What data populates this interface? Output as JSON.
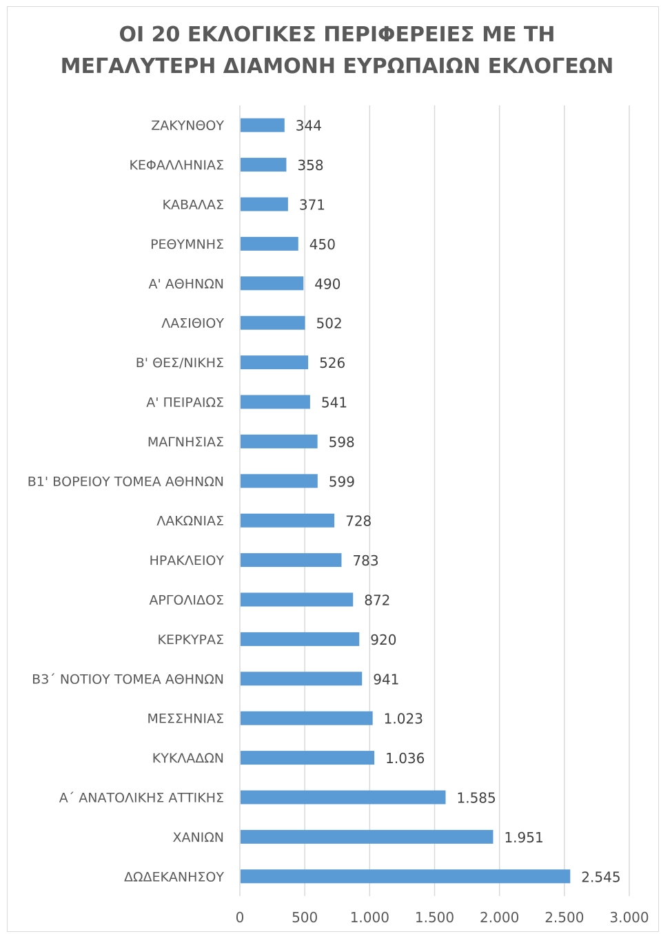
{
  "chart_data": {
    "type": "bar",
    "orientation": "horizontal",
    "title_lines": [
      "ΟΙ 20 ΕΚΛΟΓΙΚΕΣ ΠΕΡΙΦΕΡΕΙΕΣ ΜΕ ΤΗ",
      "ΜΕΓΑΛΥΤΕΡΗ ΔΙΑΜΟΝΗ ΕΥΡΩΠΑΙΩΝ ΕΚΛΟΓΕΩΝ"
    ],
    "categories": [
      "ΖΑΚΥΝΘΟΥ",
      "ΚΕΦΑΛΛΗΝΙΑΣ",
      "ΚΑΒΑΛΑΣ",
      "ΡΕΘΥΜΝΗΣ",
      "Α' ΑΘΗΝΩΝ",
      "ΛΑΣΙΘΙΟΥ",
      "Β' ΘΕΣ/ΝΙΚΗΣ",
      "Α' ΠΕΙΡΑΙΩΣ",
      "ΜΑΓΝΗΣΙΑΣ",
      "Β1' ΒΟΡΕΙΟΥ ΤΟΜΕΑ ΑΘΗΝΩΝ",
      "ΛΑΚΩΝΙΑΣ",
      "ΗΡΑΚΛΕΙΟΥ",
      "ΑΡΓΟΛΙΔΟΣ",
      "ΚΕΡΚΥΡΑΣ",
      "Β3΄ ΝΟΤΙΟΥ ΤΟΜΕΑ ΑΘΗΝΩΝ",
      "ΜΕΣΣΗΝΙΑΣ",
      "ΚΥΚΛΑΔΩΝ",
      "Α΄ ΑΝΑΤΟΛΙΚΗΣ ΑΤΤΙΚΗΣ",
      "ΧΑΝΙΩΝ",
      "ΔΩΔΕΚΑΝΗΣΟΥ"
    ],
    "values": [
      344,
      358,
      371,
      450,
      490,
      502,
      526,
      541,
      598,
      599,
      728,
      783,
      872,
      920,
      941,
      1023,
      1036,
      1585,
      1951,
      2545
    ],
    "value_labels": [
      "344",
      "358",
      "371",
      "450",
      "490",
      "502",
      "526",
      "541",
      "598",
      "599",
      "728",
      "783",
      "872",
      "920",
      "941",
      "1.023",
      "1.036",
      "1.585",
      "1.951",
      "2.545"
    ],
    "xlim": [
      0,
      3000
    ],
    "x_ticks": [
      0,
      500,
      1000,
      1500,
      2000,
      2500,
      3000
    ],
    "x_tick_labels": [
      "0",
      "500",
      "1.000",
      "1.500",
      "2.000",
      "2.500",
      "3.000"
    ],
    "grid": "vertical",
    "legend": "none",
    "bar_color": "#5b9bd5",
    "gridline_color": "#d9d9d9"
  }
}
